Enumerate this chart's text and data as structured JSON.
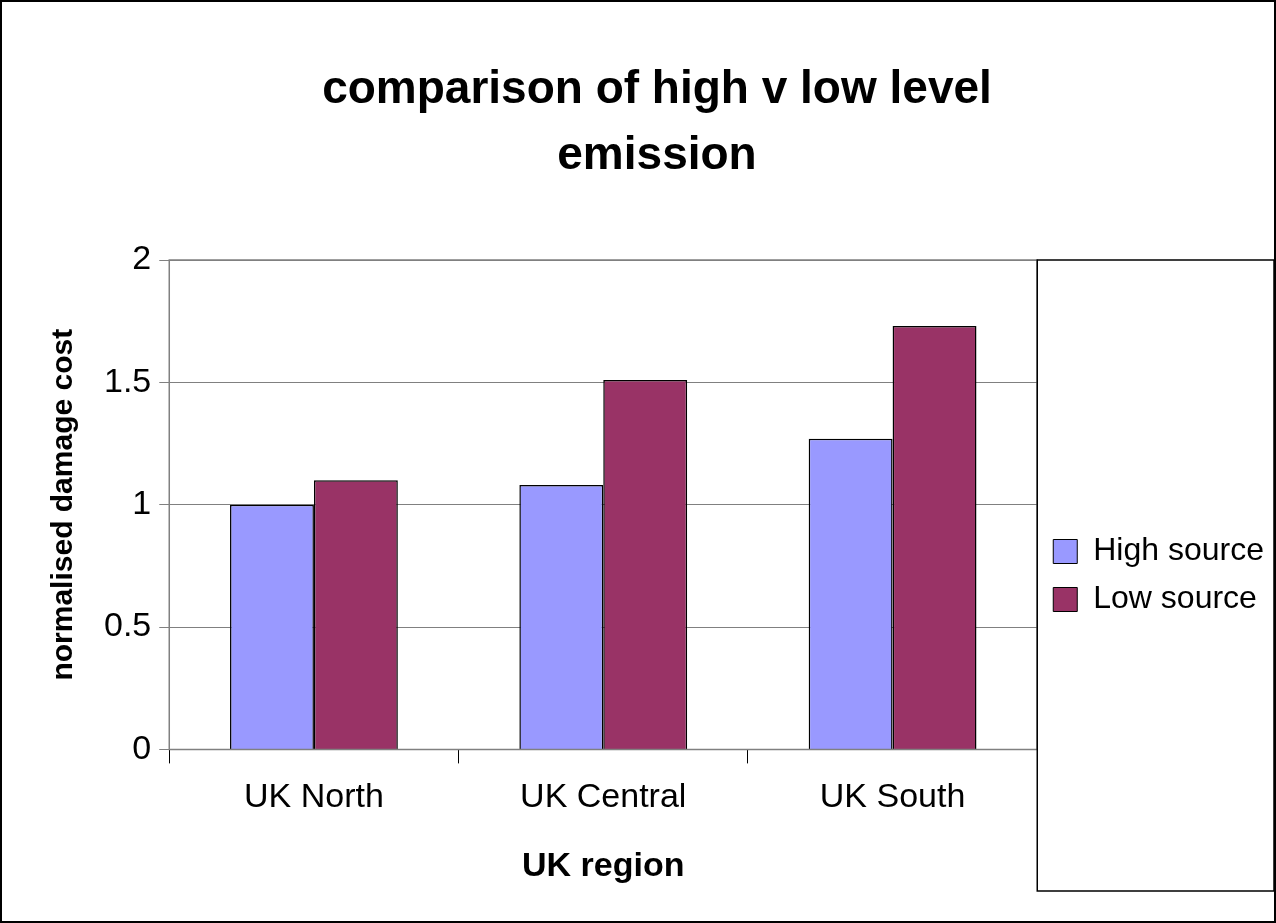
{
  "chart_data": {
    "type": "bar",
    "title": "comparison of high v low level emission",
    "xlabel": "UK region",
    "ylabel": "normalised damage cost",
    "categories": [
      "UK North",
      "UK Central",
      "UK South"
    ],
    "series": [
      {
        "name": "High source",
        "color": "#9999ff",
        "values": [
          1.0,
          1.08,
          1.27
        ]
      },
      {
        "name": "Low source",
        "color": "#993366",
        "values": [
          1.1,
          1.51,
          1.73
        ]
      }
    ],
    "ylim": [
      0,
      2
    ],
    "yticks": [
      0,
      0.5,
      1,
      1.5,
      2
    ],
    "grid": "y",
    "legend": "right"
  }
}
